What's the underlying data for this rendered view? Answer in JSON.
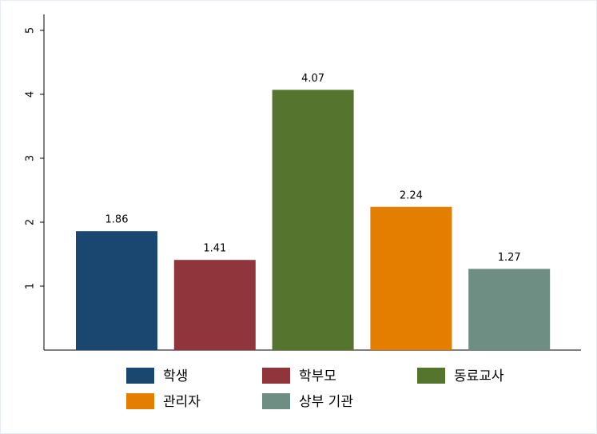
{
  "chart_data": {
    "type": "bar",
    "series": [
      {
        "name": "학생",
        "color": "#1a476f",
        "values": [
          1.86
        ]
      },
      {
        "name": "학부모",
        "color": "#90353b",
        "values": [
          1.41
        ]
      },
      {
        "name": "동료교사",
        "color": "#55752f",
        "values": [
          4.07
        ]
      },
      {
        "name": "관리자",
        "color": "#e37e00",
        "values": [
          2.24
        ]
      },
      {
        "name": "상부 기관",
        "color": "#6e8e84",
        "values": [
          1.27
        ]
      }
    ],
    "ylim": [
      0,
      5.25
    ],
    "yticks": [
      1,
      2,
      3,
      4,
      5
    ],
    "grid": false
  }
}
